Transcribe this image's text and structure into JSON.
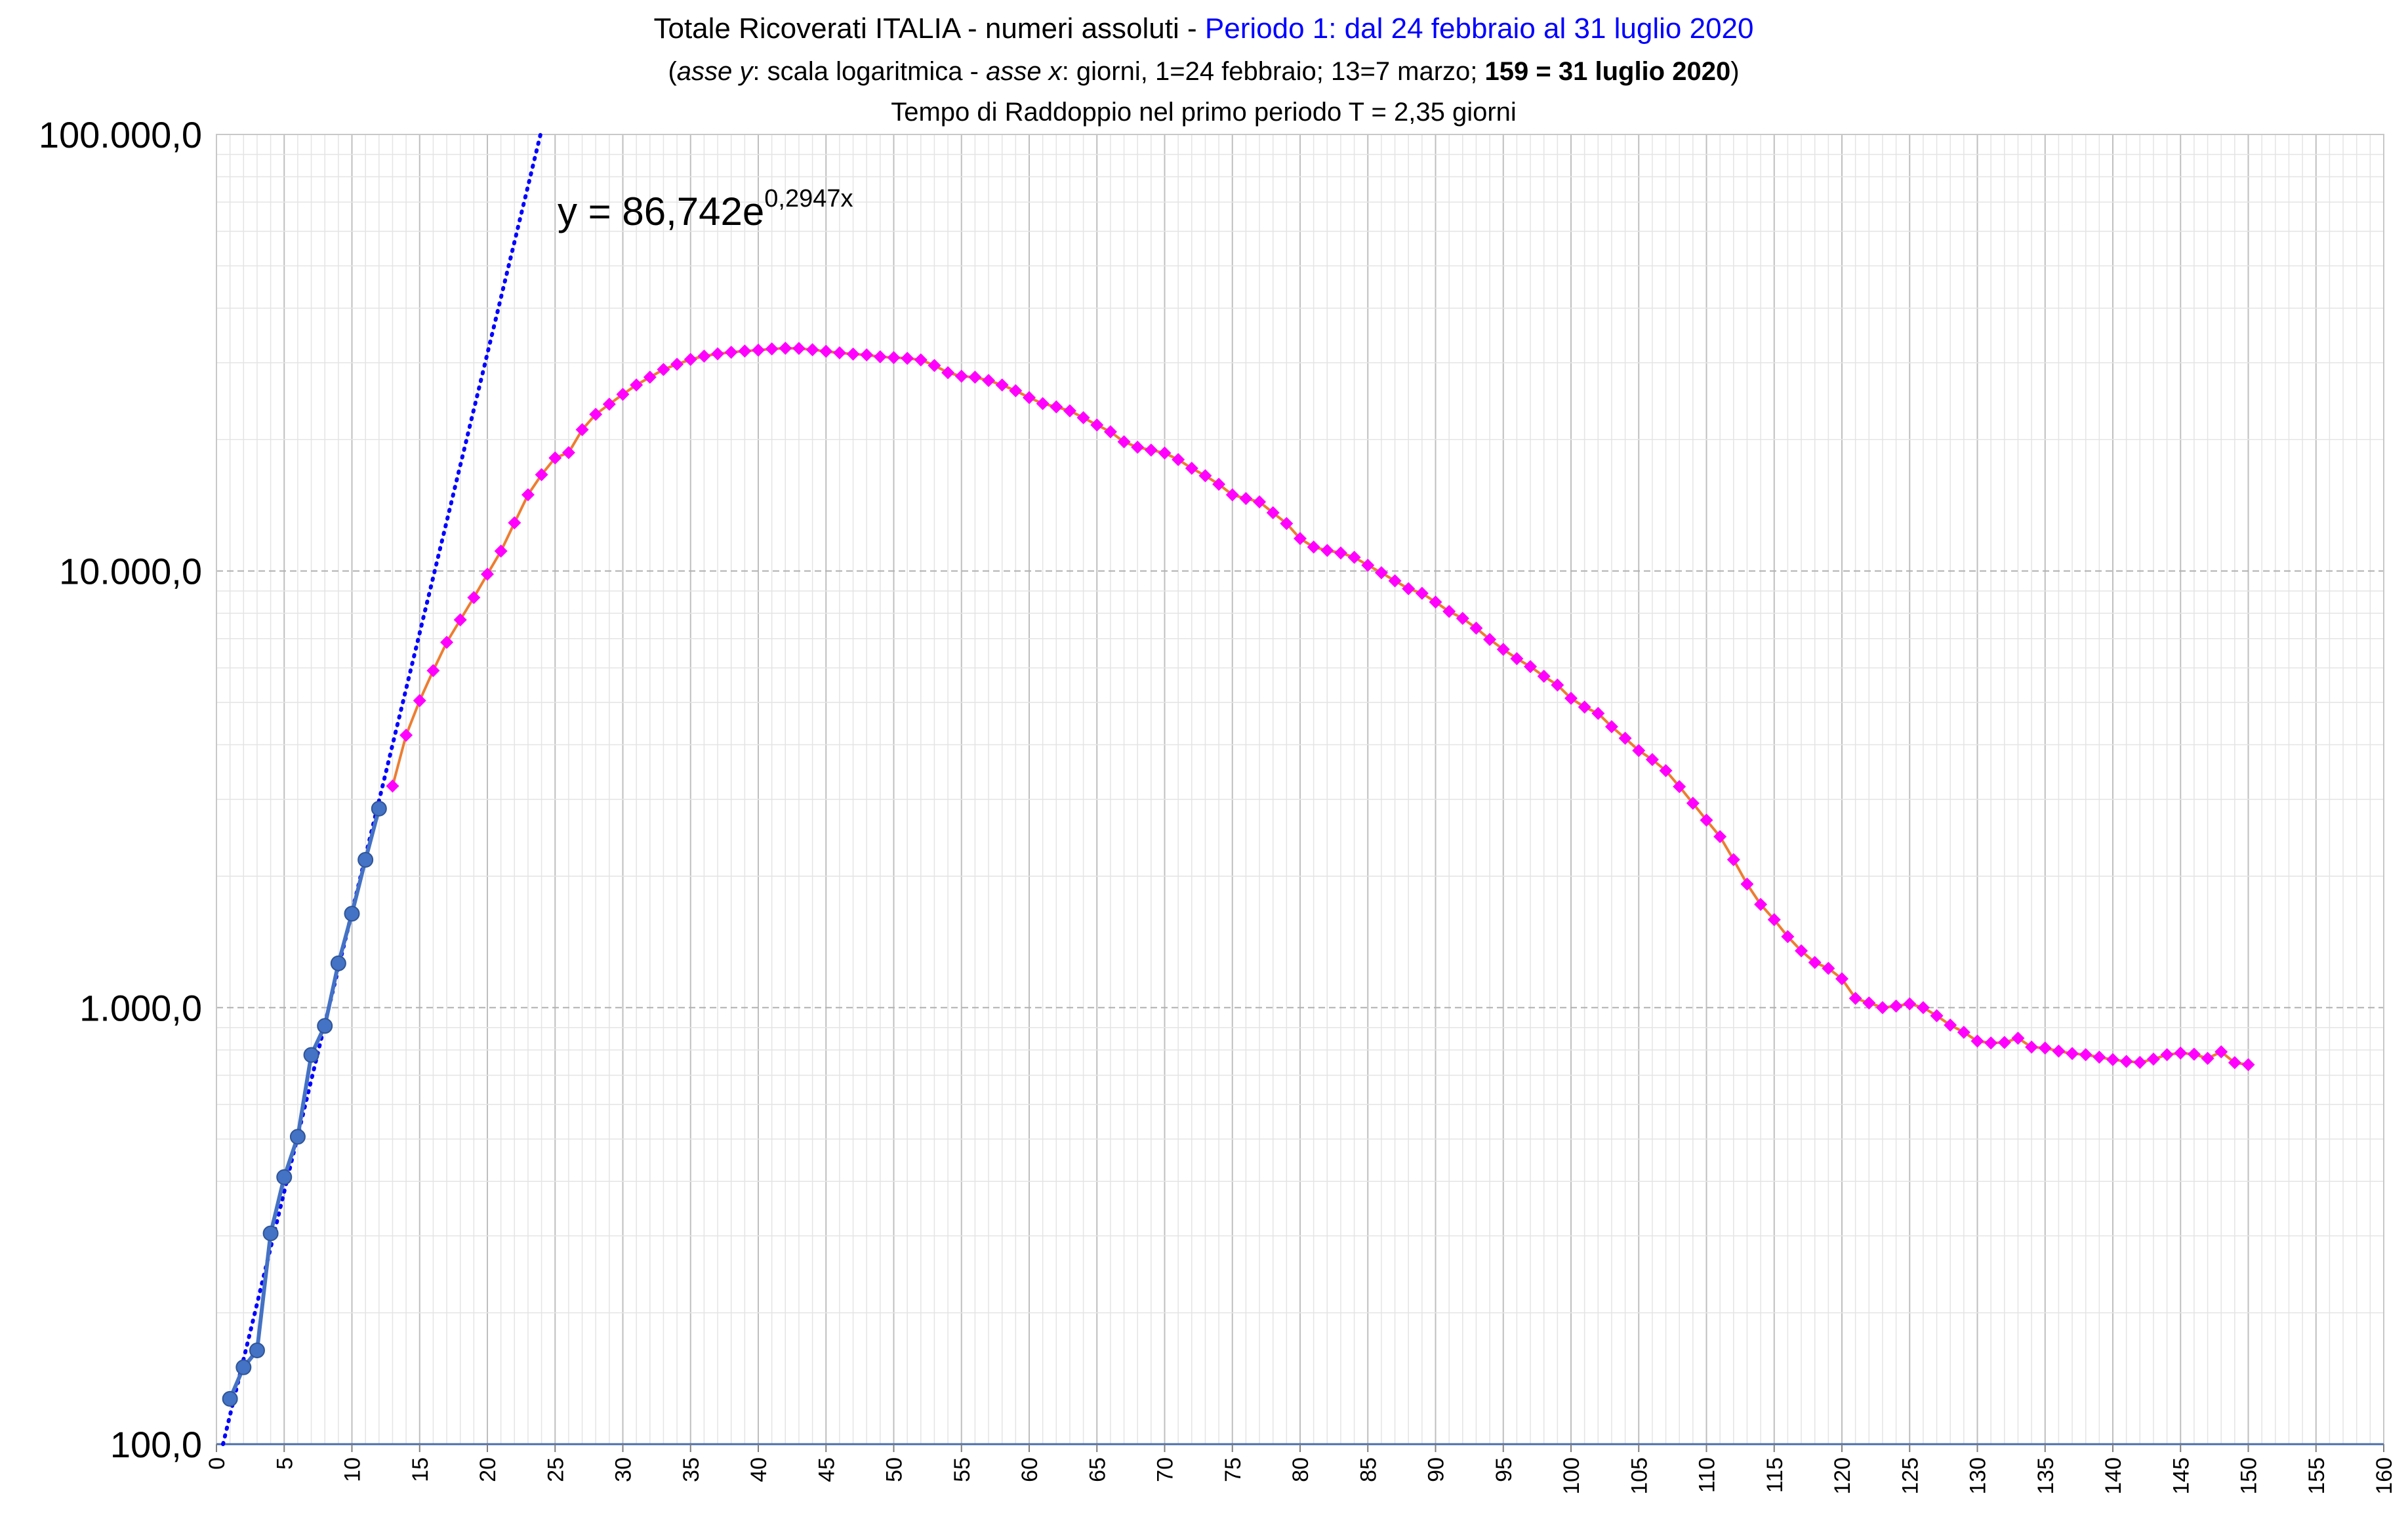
{
  "chart_data": {
    "type": "line",
    "title_parts": [
      {
        "text": "Totale Ricoverati ITALIA - numeri assoluti - ",
        "style": "normal"
      },
      {
        "text": "Periodo 1: dal 24 febbraio al 31 luglio 2020",
        "style": "blue"
      }
    ],
    "subtitle_parts": [
      {
        "text": "(",
        "style": "normal"
      },
      {
        "text": "asse y",
        "style": "italic"
      },
      {
        "text": ": scala logaritmica - ",
        "style": "normal"
      },
      {
        "text": "asse x",
        "style": "italic"
      },
      {
        "text": ":  giorni, 1=24 febbraio; 13=7 marzo; ",
        "style": "normal"
      },
      {
        "text": "159 = 31 luglio 2020",
        "style": "bold"
      },
      {
        "text": ")",
        "style": "normal"
      }
    ],
    "subtitle2": "Tempo di Raddoppio nel primo periodo  T = 2,35 giorni",
    "equation": {
      "base": "y = 86,742e",
      "exponent": "0,2947x"
    },
    "x_axis": {
      "min": 0,
      "max": 160,
      "major_step": 5,
      "minor_step": 1
    },
    "y_axis": {
      "scale": "log",
      "min": 100,
      "max": 100000
    },
    "x_tick_labels": [
      "0",
      "5",
      "10",
      "15",
      "20",
      "25",
      "30",
      "35",
      "40",
      "45",
      "50",
      "55",
      "60",
      "65",
      "70",
      "75",
      "80",
      "85",
      "90",
      "95",
      "100",
      "105",
      "110",
      "115",
      "120",
      "125",
      "130",
      "135",
      "140",
      "145",
      "150",
      "155",
      "160"
    ],
    "y_tick_labels": [
      {
        "value": 100,
        "label": "100,0"
      },
      {
        "value": 1000,
        "label": "1.000,0"
      },
      {
        "value": 10000,
        "label": "10.000,0"
      },
      {
        "value": 100000,
        "label": "100.000,0"
      }
    ],
    "grid": true,
    "colors": {
      "series1": "#4472c4",
      "series2_line": "#ed7d31",
      "series2_marker": "#ff00ff",
      "trendline": "#0000ff",
      "title_blue": "#0000ff"
    },
    "trendline": {
      "a": 86.742,
      "b": 0.2947,
      "style": "dotted"
    },
    "series": [
      {
        "marker": "circle",
        "points": [
          [
            1,
            127
          ],
          [
            2,
            150
          ],
          [
            3,
            164
          ],
          [
            4,
            304
          ],
          [
            5,
            409
          ],
          [
            6,
            506
          ],
          [
            7,
            779
          ],
          [
            8,
            908
          ],
          [
            9,
            1263
          ],
          [
            10,
            1641
          ],
          [
            11,
            2180
          ],
          [
            12,
            2856
          ]
        ]
      },
      {
        "marker": "diamond",
        "points": [
          [
            13,
            3218
          ],
          [
            14,
            4207
          ],
          [
            15,
            5049
          ],
          [
            16,
            5915
          ],
          [
            17,
            6866
          ],
          [
            18,
            7731
          ],
          [
            19,
            8694
          ],
          [
            20,
            9835
          ],
          [
            21,
            11108
          ],
          [
            22,
            12894
          ],
          [
            23,
            14955
          ],
          [
            24,
            16620
          ],
          [
            25,
            18159
          ],
          [
            26,
            18676
          ],
          [
            27,
            21079
          ],
          [
            28,
            22855
          ],
          [
            29,
            24109
          ],
          [
            30,
            25392
          ],
          [
            31,
            26676
          ],
          [
            32,
            27795
          ],
          [
            33,
            28949
          ],
          [
            34,
            29761
          ],
          [
            35,
            30532
          ],
          [
            36,
            31066
          ],
          [
            37,
            31442
          ],
          [
            38,
            31704
          ],
          [
            39,
            31907
          ],
          [
            40,
            32052
          ],
          [
            41,
            32266
          ],
          [
            42,
            32378
          ],
          [
            43,
            32358
          ],
          [
            44,
            32127
          ],
          [
            45,
            31861
          ],
          [
            46,
            31599
          ],
          [
            47,
            31405
          ],
          [
            48,
            31259
          ],
          [
            49,
            30953
          ],
          [
            50,
            30821
          ],
          [
            51,
            30705
          ],
          [
            52,
            30453
          ],
          [
            53,
            29573
          ],
          [
            54,
            28470
          ],
          [
            55,
            27945
          ],
          [
            56,
            27790
          ],
          [
            57,
            27319
          ],
          [
            58,
            26677
          ],
          [
            59,
            25877
          ],
          [
            60,
            24961
          ],
          [
            61,
            24181
          ],
          [
            62,
            23764
          ],
          [
            63,
            23278
          ],
          [
            64,
            22450
          ],
          [
            65,
            21600
          ],
          [
            66,
            20840
          ],
          [
            67,
            19766
          ],
          [
            68,
            19217
          ],
          [
            69,
            18928
          ],
          [
            70,
            18630
          ],
          [
            71,
            18000
          ],
          [
            72,
            17193
          ],
          [
            73,
            16530
          ],
          [
            74,
            15800
          ],
          [
            75,
            14944
          ],
          [
            76,
            14659
          ],
          [
            77,
            14401
          ],
          [
            78,
            13600
          ],
          [
            79,
            12848
          ],
          [
            80,
            11868
          ],
          [
            81,
            11349
          ],
          [
            82,
            11148
          ],
          [
            83,
            11000
          ],
          [
            84,
            10750
          ],
          [
            85,
            10311
          ],
          [
            86,
            9912
          ],
          [
            87,
            9496
          ],
          [
            88,
            9108
          ],
          [
            89,
            8892
          ],
          [
            90,
            8490
          ],
          [
            91,
            8080
          ],
          [
            92,
            7791
          ],
          [
            93,
            7400
          ],
          [
            94,
            6972
          ],
          [
            95,
            6615
          ],
          [
            96,
            6300
          ],
          [
            97,
            6040
          ],
          [
            98,
            5740
          ],
          [
            99,
            5480
          ],
          [
            100,
            5110
          ],
          [
            101,
            4880
          ],
          [
            102,
            4720
          ],
          [
            103,
            4400
          ],
          [
            104,
            4140
          ],
          [
            105,
            3880
          ],
          [
            106,
            3700
          ],
          [
            107,
            3490
          ],
          [
            108,
            3208
          ],
          [
            109,
            2938
          ],
          [
            110,
            2688
          ],
          [
            111,
            2464
          ],
          [
            112,
            2182
          ],
          [
            113,
            1918
          ],
          [
            114,
            1723
          ],
          [
            115,
            1590
          ],
          [
            116,
            1454
          ],
          [
            117,
            1349
          ],
          [
            118,
            1269
          ],
          [
            119,
            1230
          ],
          [
            120,
            1164
          ],
          [
            121,
            1050
          ],
          [
            122,
            1025
          ],
          [
            123,
            1000
          ],
          [
            124,
            1008
          ],
          [
            125,
            1020
          ],
          [
            126,
            1000
          ],
          [
            127,
            958
          ],
          [
            128,
            912
          ],
          [
            129,
            878
          ],
          [
            130,
            838
          ],
          [
            131,
            830
          ],
          [
            132,
            832
          ],
          [
            133,
            851
          ],
          [
            134,
            812
          ],
          [
            135,
            808
          ],
          [
            136,
            795
          ],
          [
            137,
            785
          ],
          [
            138,
            780
          ],
          [
            139,
            770
          ],
          [
            140,
            760
          ],
          [
            141,
            753
          ],
          [
            142,
            749
          ],
          [
            143,
            762
          ],
          [
            144,
            780
          ],
          [
            145,
            787
          ],
          [
            146,
            782
          ],
          [
            147,
            765
          ],
          [
            148,
            792
          ],
          [
            149,
            748
          ],
          [
            150,
            740
          ]
        ]
      }
    ]
  }
}
